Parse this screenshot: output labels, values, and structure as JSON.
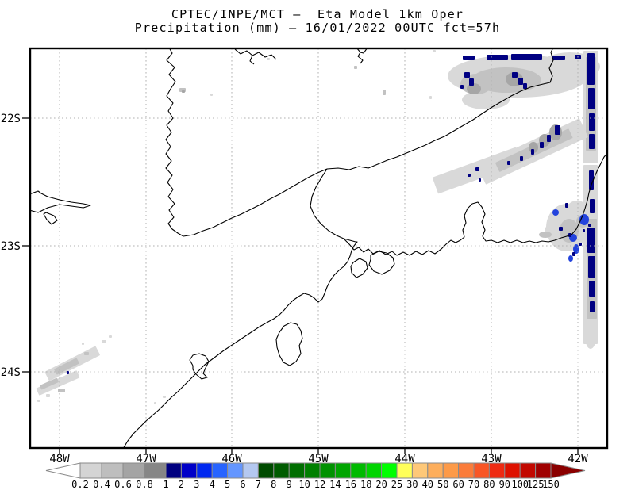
{
  "title": {
    "line1": "CPTEC/INPE/MCT —  Eta Model 1km Oper",
    "line2": "Precipitation (mm) — 16/01/2022 00UTC fct=57h"
  },
  "axes": {
    "lat_labels": [
      "22S",
      "23S",
      "24S"
    ],
    "lon_labels": [
      "48W",
      "47W",
      "46W",
      "45W",
      "44W",
      "43W",
      "42W"
    ]
  },
  "colorbar": {
    "tick_labels": [
      "0.2",
      "0.4",
      "0.6",
      "0.8",
      "1",
      "2",
      "3",
      "4",
      "5",
      "6",
      "7",
      "8",
      "9",
      "10",
      "12",
      "14",
      "16",
      "18",
      "20",
      "25",
      "30",
      "40",
      "50",
      "60",
      "70",
      "80",
      "90",
      "100",
      "125",
      "150"
    ],
    "cell_colors": [
      "#d4d4d4",
      "#bebebe",
      "#a4a4a4",
      "#868686",
      "#000080",
      "#0000c8",
      "#0028f0",
      "#2864ff",
      "#6496ff",
      "#b4c8f0",
      "#004b00",
      "#005c00",
      "#006e00",
      "#008000",
      "#009200",
      "#00a500",
      "#00ba00",
      "#00d400",
      "#00ff00",
      "#ffff5a",
      "#fec878",
      "#fdae5c",
      "#fd9a48",
      "#fb7c3a",
      "#f85626",
      "#ee2a12",
      "#de1200",
      "#c20800",
      "#a00000"
    ],
    "under_arrow_color": "#ffffff",
    "over_arrow_color": "#8b0000",
    "outline_color": "#8a8a8a"
  },
  "map": {
    "border_color": "#000000",
    "grid_color": "#b2b2b2",
    "coast_color": "#000000",
    "palette": {
      "g1": "#d9d9d9",
      "g2": "#c2c2c2",
      "g3": "#a6a6a6",
      "navy": "#000082",
      "blue": "#2343dd"
    },
    "coastlines": [
      [
        213,
        60,
        217,
        67,
        210,
        76,
        220,
        85,
        213,
        94,
        221,
        103,
        215,
        112,
        210,
        121,
        218,
        130,
        212,
        140,
        218,
        149,
        210,
        158,
        216,
        167,
        209,
        176,
        215,
        185,
        209,
        194,
        216,
        203,
        209,
        212,
        217,
        221,
        211,
        230,
        218,
        239,
        212,
        248,
        220,
        257,
        213,
        265,
        219,
        274,
        212,
        282,
        217,
        289,
        224,
        294,
        231,
        298
      ],
      [
        231,
        298,
        244,
        296,
        256,
        291,
        268,
        287,
        280,
        281,
        292,
        275,
        304,
        270,
        316,
        264,
        328,
        258,
        340,
        251,
        352,
        245,
        364,
        238,
        376,
        231,
        388,
        224,
        400,
        218,
        412,
        213
      ],
      [
        412,
        213,
        426,
        212,
        440,
        214,
        452,
        210,
        464,
        212,
        476,
        207,
        488,
        202,
        500,
        198,
        512,
        193,
        524,
        188,
        536,
        183,
        548,
        177,
        560,
        172,
        572,
        165,
        584,
        158,
        596,
        151,
        608,
        143,
        620,
        135,
        632,
        128,
        644,
        121,
        656,
        115,
        668,
        110,
        680,
        107,
        693,
        104,
        696,
        96,
        692,
        86,
        697,
        76,
        694,
        66,
        697,
        60
      ],
      [
        412,
        213,
        405,
        224,
        398,
        236,
        393,
        248,
        391,
        260,
        396,
        272,
        404,
        282,
        414,
        291,
        424,
        297,
        433,
        301
      ],
      [
        155,
        566,
        161,
        556,
        168,
        547,
        176,
        539,
        184,
        531,
        192,
        524,
        200,
        517,
        208,
        509,
        216,
        501,
        224,
        494,
        231,
        487,
        238,
        480,
        244,
        474,
        251,
        467,
        258,
        460,
        266,
        454,
        274,
        448,
        282,
        442,
        291,
        436,
        300,
        430,
        309,
        424,
        318,
        418,
        327,
        412,
        336,
        407,
        345,
        402,
        352,
        397,
        358,
        391,
        363,
        385,
        369,
        379,
        376,
        374,
        383,
        370,
        390,
        372,
        396,
        376,
        401,
        381,
        406,
        377,
        409,
        370,
        412,
        362,
        416,
        354,
        421,
        347,
        427,
        341,
        433,
        336,
        438,
        330,
        441,
        323,
        443,
        316,
        446,
        310,
        450,
        305,
        448,
        305,
        433,
        301
      ],
      [
        433,
        301,
        440,
        308,
        446,
        315,
        452,
        312,
        458,
        318,
        464,
        314,
        470,
        320,
        478,
        316,
        486,
        321,
        494,
        317,
        500,
        322,
        508,
        318,
        516,
        322,
        524,
        317,
        532,
        321,
        540,
        316,
        548,
        320,
        556,
        314,
        562,
        308,
        568,
        303,
        574,
        306,
        580,
        303,
        585,
        299,
        583,
        290,
        587,
        281,
        585,
        272,
        589,
        263,
        595,
        257,
        602,
        255,
        607,
        261,
        611,
        270,
        607,
        280,
        611,
        290,
        608,
        298,
        612,
        304,
        619,
        303,
        627,
        306,
        635,
        303,
        643,
        306,
        651,
        303,
        659,
        306,
        667,
        304,
        675,
        306,
        683,
        304,
        691,
        305,
        699,
        303,
        707,
        300,
        714,
        298,
        720,
        296,
        726,
        289,
        730,
        281,
        734,
        272,
        737,
        263,
        740,
        253,
        742,
        243,
        745,
        233,
        749,
        223,
        753,
        214,
        757,
        206,
        761,
        198,
        766,
        192
      ],
      [
        243,
        461,
        239,
        454,
        243,
        448,
        251,
        446,
        259,
        449,
        263,
        456,
        259,
        464,
        256,
        471,
        261,
        476,
        254,
        478,
        247,
        472,
        243,
        466,
        243,
        461
      ],
      [
        352,
        419,
        358,
        411,
        366,
        407,
        374,
        409,
        379,
        417,
        381,
        427,
        377,
        436,
        379,
        446,
        373,
        456,
        365,
        461,
        357,
        457,
        352,
        448,
        349,
        438,
        348,
        428,
        352,
        419
      ],
      [
        467,
        322,
        477,
        317,
        487,
        319,
        495,
        325,
        497,
        333,
        491,
        341,
        481,
        346,
        471,
        342,
        465,
        334,
        467,
        327,
        467,
        322
      ],
      [
        445,
        331,
        453,
        326,
        461,
        330,
        463,
        338,
        457,
        346,
        449,
        350,
        443,
        344,
        442,
        336,
        445,
        331
      ],
      [
        37,
        245,
        48,
        241,
        52,
        244,
        60,
        248,
        75,
        252,
        90,
        255,
        105,
        257,
        114,
        259,
        105,
        262,
        90,
        260,
        75,
        258,
        60,
        262,
        48,
        268,
        37,
        265
      ],
      [
        58,
        268,
        68,
        272,
        72,
        278,
        65,
        283,
        59,
        277,
        55,
        270,
        58,
        268
      ],
      [
        296,
        62,
        303,
        68,
        311,
        64,
        318,
        70,
        326,
        66,
        334,
        72,
        342,
        69,
        348,
        75
      ],
      [
        318,
        70,
        315,
        77,
        320,
        81
      ],
      [
        449,
        60,
        454,
        66,
        451,
        71,
        457,
        76,
        454,
        80
      ],
      [
        463,
        60,
        458,
        67,
        454,
        66
      ]
    ],
    "precipitation": [
      [
        "e",
        652,
        96,
        88,
        27,
        "g1"
      ],
      [
        "e",
        718,
        84,
        38,
        18,
        "g1"
      ],
      [
        "e",
        612,
        126,
        30,
        12,
        "g1"
      ],
      [
        "e",
        638,
        101,
        44,
        16,
        "g2"
      ],
      [
        "e",
        600,
        106,
        20,
        13,
        "g2"
      ],
      [
        "e",
        648,
        100,
        11,
        9,
        "g3"
      ],
      [
        "e",
        597,
        112,
        9,
        7,
        "g3"
      ],
      [
        "r",
        583,
        70,
        15,
        6,
        "navy"
      ],
      [
        "r",
        613,
        69,
        27,
        7,
        "navy"
      ],
      [
        "r",
        644,
        68,
        39,
        8,
        "navy"
      ],
      [
        "r",
        696,
        70,
        16,
        6,
        "navy"
      ],
      [
        "r",
        585,
        91,
        7,
        7,
        "navy"
      ],
      [
        "r",
        591,
        99,
        6,
        9,
        "navy"
      ],
      [
        "r",
        645,
        91,
        7,
        7,
        "navy"
      ],
      [
        "r",
        653,
        98,
        6,
        9,
        "navy"
      ],
      [
        "r",
        659,
        105,
        5,
        7,
        "navy"
      ],
      [
        "r",
        580,
        107,
        4,
        5,
        "navy"
      ],
      [
        "r",
        724,
        69,
        8,
        6,
        "navy"
      ],
      [
        "r",
        735,
        64,
        19,
        142,
        "g1"
      ],
      [
        "r",
        735,
        208,
        18,
        226,
        "g1"
      ],
      [
        "r",
        738,
        72,
        13,
        118,
        "g2"
      ],
      [
        "r",
        739,
        276,
        13,
        126,
        "g2"
      ],
      [
        "r",
        740,
        67,
        9,
        40,
        "navy"
      ],
      [
        "r",
        741,
        111,
        8,
        27,
        "navy"
      ],
      [
        "r",
        742,
        143,
        7,
        22,
        "navy"
      ],
      [
        "r",
        742,
        169,
        7,
        19,
        "navy"
      ],
      [
        "r",
        742,
        215,
        6,
        25,
        "navy"
      ],
      [
        "r",
        743,
        251,
        6,
        18,
        "navy"
      ],
      [
        "r",
        740,
        287,
        10,
        32,
        "navy"
      ],
      [
        "r",
        741,
        323,
        9,
        27,
        "navy"
      ],
      [
        "r",
        742,
        354,
        8,
        20,
        "navy"
      ],
      [
        "r",
        743,
        380,
        6,
        14,
        "navy"
      ],
      [
        "e",
        744,
        424,
        7,
        16,
        "g1"
      ],
      [
        "r",
        600,
        178,
        142,
        26,
        "g1",
        [
          -25,
          671,
          191
        ]
      ],
      [
        "r",
        545,
        204,
        112,
        22,
        "g1",
        [
          -20,
          601,
          215
        ]
      ],
      [
        "r",
        622,
        183,
        102,
        13,
        "g2",
        [
          -25,
          673,
          190
        ]
      ],
      [
        "e",
        700,
        167,
        8,
        10,
        "g3"
      ],
      [
        "e",
        686,
        177,
        7,
        8,
        "g3"
      ],
      [
        "e",
        672,
        186,
        6,
        7,
        "g3"
      ],
      [
        "r",
        699,
        158,
        7,
        12,
        "navy"
      ],
      [
        "r",
        689,
        170,
        5,
        9,
        "navy"
      ],
      [
        "r",
        680,
        179,
        5,
        8,
        "navy"
      ],
      [
        "r",
        669,
        188,
        4,
        7,
        "navy"
      ],
      [
        "r",
        655,
        197,
        4,
        6,
        "navy"
      ],
      [
        "r",
        639,
        203,
        4,
        5,
        "navy"
      ],
      [
        "r",
        599,
        211,
        5,
        5,
        "navy"
      ],
      [
        "r",
        589,
        219,
        4,
        4,
        "navy"
      ],
      [
        "r",
        603,
        225,
        3,
        4,
        "navy"
      ],
      [
        "e",
        573,
        229,
        9,
        5,
        "g1"
      ],
      [
        "e",
        557,
        237,
        7,
        4,
        "g1"
      ],
      [
        "e",
        714,
        287,
        26,
        30,
        "g1"
      ],
      [
        "e",
        698,
        291,
        12,
        9,
        "g1"
      ],
      [
        "e",
        727,
        264,
        13,
        11,
        "g1"
      ],
      [
        "e",
        717,
        291,
        12,
        15,
        "g2"
      ],
      [
        "e",
        734,
        279,
        8,
        8,
        "g2"
      ],
      [
        "e",
        687,
        296,
        8,
        4,
        "g2"
      ],
      [
        "e",
        736,
        277,
        6,
        7,
        "blue"
      ],
      [
        "e",
        722,
        300,
        5,
        5,
        "blue"
      ],
      [
        "e",
        726,
        314,
        4,
        6,
        "blue"
      ],
      [
        "e",
        700,
        268,
        4,
        4,
        "blue"
      ],
      [
        "r",
        704,
        286,
        5,
        5,
        "navy"
      ],
      [
        "r",
        712,
        256,
        4,
        6,
        "navy"
      ],
      [
        "r",
        716,
        294,
        4,
        5,
        "navy"
      ],
      [
        "r",
        729,
        306,
        4,
        4,
        "navy"
      ],
      [
        "r",
        734,
        289,
        3,
        4,
        "navy"
      ],
      [
        "r",
        741,
        282,
        4,
        4,
        "navy"
      ],
      [
        "r",
        721,
        318,
        4,
        5,
        "navy"
      ],
      [
        "e",
        719,
        326,
        3,
        4,
        "blue"
      ],
      [
        "r",
        226,
        111,
        8,
        5,
        "g2"
      ],
      [
        "r",
        229,
        114,
        4,
        3,
        "g3"
      ],
      [
        "r",
        265,
        118,
        3,
        3,
        "g1"
      ],
      [
        "r",
        336,
        73,
        4,
        3,
        "g1"
      ],
      [
        "r",
        446,
        83,
        4,
        4,
        "g2"
      ],
      [
        "r",
        482,
        113,
        4,
        7,
        "g2"
      ],
      [
        "r",
        541,
        121,
        3,
        4,
        "g1"
      ],
      [
        "r",
        545,
        63,
        4,
        3,
        "g1"
      ],
      [
        "r",
        55,
        452,
        72,
        13,
        "g1",
        [
          -27,
          91,
          458
        ]
      ],
      [
        "r",
        45,
        478,
        56,
        10,
        "g1",
        [
          -24,
          73,
          483
        ]
      ],
      [
        "r",
        68,
        458,
        32,
        8,
        "g2",
        [
          -27,
          84,
          462
        ]
      ],
      [
        "r",
        50,
        481,
        24,
        6,
        "g2",
        [
          -24,
          62,
          484
        ]
      ],
      [
        "r",
        128,
        429,
        6,
        4,
        "g1"
      ],
      [
        "r",
        137,
        423,
        4,
        3,
        "g1"
      ],
      [
        "r",
        106,
        444,
        6,
        4,
        "g2"
      ],
      [
        "r",
        73,
        490,
        9,
        5,
        "g2"
      ],
      [
        "r",
        58,
        497,
        5,
        4,
        "g1"
      ],
      [
        "r",
        47,
        504,
        4,
        3,
        "g1"
      ],
      [
        "r",
        84,
        468,
        3,
        4,
        "navy"
      ],
      [
        "r",
        103,
        432,
        3,
        3,
        "g1"
      ],
      [
        "r",
        205,
        499,
        4,
        3,
        "g1"
      ],
      [
        "r",
        194,
        507,
        3,
        3,
        "g1"
      ]
    ]
  },
  "chart_data": {
    "type": "heatmap",
    "title": "CPTEC/INPE/MCT — Eta Model 1km Oper",
    "subtitle": "Precipitation (mm) — 16/01/2022 00UTC fct=57h",
    "variable": "Precipitation",
    "units": "mm",
    "model": "Eta Model 1km Oper",
    "run": "16/01/2022 00UTC",
    "forecast": "fct=57h",
    "x_ticks": [
      "48W",
      "47W",
      "46W",
      "45W",
      "44W",
      "43W",
      "42W"
    ],
    "y_ticks": [
      "22S",
      "23S",
      "24S"
    ],
    "color_levels": [
      0.2,
      0.4,
      0.6,
      0.8,
      1,
      2,
      3,
      4,
      5,
      6,
      7,
      8,
      9,
      10,
      12,
      14,
      16,
      18,
      20,
      25,
      30,
      40,
      50,
      60,
      70,
      80,
      90,
      100,
      125,
      150
    ],
    "level_colors": [
      "#d4d4d4",
      "#bebebe",
      "#a4a4a4",
      "#868686",
      "#000080",
      "#0000c8",
      "#0028f0",
      "#2864ff",
      "#6496ff",
      "#b4c8f0",
      "#004b00",
      "#005c00",
      "#006e00",
      "#008000",
      "#009200",
      "#00a500",
      "#00ba00",
      "#00d400",
      "#00ff00",
      "#ffff5a",
      "#fec878",
      "#fdae5c",
      "#fd9a48",
      "#fb7c3a",
      "#f85626",
      "#ee2a12",
      "#de1200",
      "#c20800",
      "#a00000"
    ],
    "grid": true,
    "legend_position": "bottom",
    "notes": "Light rain (0.2–1 mm, grays) over the NE sector near 43W–42W / 21.5S–22.5S, a SW–NE band near 48W–47.5W / 24S, and scattered cells of 1–5 mm (navy/blue) along the NE edge and near the coast at ~42W, 23S."
  }
}
